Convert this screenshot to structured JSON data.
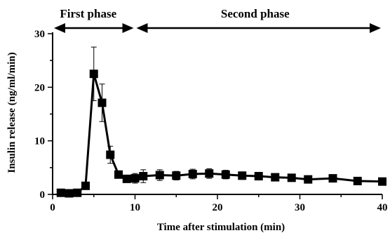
{
  "chart_data": {
    "type": "line",
    "xlabel": "Time after stimulation (min)",
    "ylabel": "Insulin release (ng/ml/min)",
    "xlim": [
      0,
      40
    ],
    "ylim": [
      0,
      30
    ],
    "x_ticks": [
      0,
      10,
      20,
      30,
      40
    ],
    "y_ticks": [
      0,
      10,
      20,
      30
    ],
    "grid": false,
    "marker": "square",
    "color": "#000000",
    "series": [
      {
        "x": [
          1,
          2,
          3,
          4,
          5,
          6,
          7,
          8,
          9,
          10,
          11,
          13,
          15,
          17,
          19,
          21,
          23,
          25,
          27,
          29,
          31,
          34,
          37,
          40
        ],
        "y": [
          0.3,
          0.2,
          0.3,
          1.6,
          22.5,
          17.1,
          7.4,
          3.7,
          2.9,
          3.0,
          3.4,
          3.6,
          3.5,
          3.8,
          3.9,
          3.7,
          3.5,
          3.4,
          3.2,
          3.1,
          2.8,
          3.0,
          2.5,
          2.4
        ],
        "error": [
          0,
          0,
          0,
          0.3,
          5.0,
          3.5,
          1.6,
          0.5,
          0.6,
          0.9,
          1.2,
          1.0,
          0.8,
          0.9,
          0.9,
          0.8,
          0.7,
          0.7,
          0.6,
          0.6,
          0.5,
          0.5,
          0.5,
          0.5
        ]
      }
    ],
    "annotations": [
      {
        "text": "First phase",
        "from": 0,
        "to": 10
      },
      {
        "text": "Second phase",
        "from": 10,
        "to": 40
      }
    ]
  }
}
